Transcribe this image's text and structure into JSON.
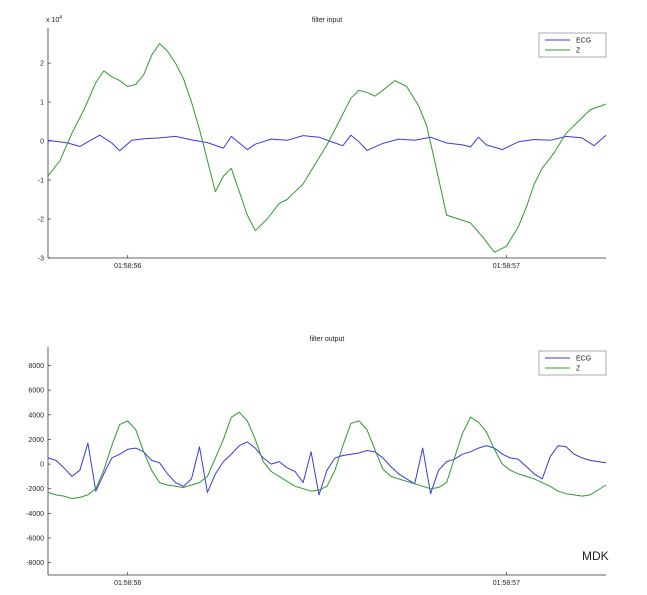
{
  "signature": "MDK",
  "colors": {
    "ecg": "#3a3adc",
    "z": "#2f9a2f"
  },
  "chart_data": [
    {
      "type": "line",
      "title": "filter input",
      "xlabel": "",
      "ylabel": "",
      "y_exponent_label": "x 10",
      "y_exponent_power": "4",
      "xlim": [
        0,
        1.4
      ],
      "ylim": [
        -3,
        2.9
      ],
      "x_ticks": [
        0.2,
        1.15
      ],
      "x_tick_labels": [
        "01:58:56",
        "01:58:57"
      ],
      "y_ticks": [
        -3,
        -2,
        -1,
        0,
        1,
        2
      ],
      "y_tick_labels": [
        "-3",
        "-2",
        "-1",
        "0",
        "1",
        "2"
      ],
      "legend": "top-right",
      "grid": false,
      "series": [
        {
          "name": "ECG",
          "color": "#3a3adc",
          "x": [
            0,
            0.05,
            0.08,
            0.1,
            0.13,
            0.16,
            0.18,
            0.21,
            0.24,
            0.28,
            0.32,
            0.36,
            0.4,
            0.44,
            0.46,
            0.48,
            0.5,
            0.52,
            0.56,
            0.6,
            0.64,
            0.68,
            0.72,
            0.74,
            0.76,
            0.78,
            0.8,
            0.84,
            0.88,
            0.92,
            0.96,
            1.0,
            1.04,
            1.06,
            1.08,
            1.1,
            1.14,
            1.18,
            1.22,
            1.26,
            1.3,
            1.34,
            1.37,
            1.4
          ],
          "y": [
            0.02,
            -0.05,
            -0.14,
            -0.02,
            0.15,
            -0.05,
            -0.25,
            0.02,
            0.06,
            0.08,
            0.12,
            0.03,
            -0.04,
            -0.18,
            0.12,
            -0.05,
            -0.22,
            -0.08,
            0.05,
            0.02,
            0.14,
            0.1,
            -0.05,
            -0.12,
            0.15,
            -0.02,
            -0.24,
            -0.06,
            0.05,
            0.02,
            0.1,
            -0.05,
            -0.1,
            -0.15,
            0.1,
            -0.1,
            -0.22,
            -0.02,
            0.04,
            0.02,
            0.12,
            0.08,
            -0.12,
            0.15
          ]
        },
        {
          "name": "Z",
          "color": "#2f9a2f",
          "x": [
            0,
            0.03,
            0.06,
            0.09,
            0.12,
            0.14,
            0.16,
            0.18,
            0.2,
            0.22,
            0.24,
            0.26,
            0.28,
            0.3,
            0.32,
            0.34,
            0.36,
            0.38,
            0.4,
            0.42,
            0.44,
            0.46,
            0.48,
            0.5,
            0.52,
            0.55,
            0.58,
            0.6,
            0.62,
            0.64,
            0.67,
            0.7,
            0.73,
            0.76,
            0.78,
            0.8,
            0.82,
            0.84,
            0.87,
            0.9,
            0.93,
            0.95,
            0.97,
            1.0,
            1.03,
            1.06,
            1.09,
            1.12,
            1.15,
            1.18,
            1.2,
            1.22,
            1.24,
            1.27,
            1.3,
            1.33,
            1.36,
            1.4
          ],
          "y": [
            -0.9,
            -0.5,
            0.2,
            0.8,
            1.5,
            1.8,
            1.65,
            1.55,
            1.4,
            1.45,
            1.7,
            2.2,
            2.5,
            2.3,
            2.0,
            1.6,
            1.0,
            0.3,
            -0.5,
            -1.3,
            -0.9,
            -0.7,
            -1.3,
            -1.9,
            -2.3,
            -2.0,
            -1.6,
            -1.5,
            -1.3,
            -1.1,
            -0.6,
            -0.1,
            0.5,
            1.1,
            1.3,
            1.25,
            1.15,
            1.3,
            1.55,
            1.4,
            0.9,
            0.4,
            -0.5,
            -1.9,
            -2.0,
            -2.1,
            -2.45,
            -2.85,
            -2.7,
            -2.2,
            -1.7,
            -1.1,
            -0.7,
            -0.3,
            0.2,
            0.5,
            0.8,
            0.95
          ]
        }
      ]
    },
    {
      "type": "line",
      "title": "filter output",
      "xlabel": "",
      "ylabel": "",
      "xlim": [
        0,
        1.4
      ],
      "ylim": [
        -9000,
        9500
      ],
      "x_ticks": [
        0.2,
        1.15
      ],
      "x_tick_labels": [
        "01:58:56",
        "01:58:57"
      ],
      "y_ticks": [
        8000,
        6000,
        4000,
        2000,
        0,
        -2000,
        -4000,
        -6000,
        -8000
      ],
      "y_tick_labels": [
        "8000",
        "6000",
        "4000",
        "2000",
        "0",
        "-2000",
        "-4000",
        "-6000",
        "-8000"
      ],
      "legend": "top-right",
      "grid": false,
      "series": [
        {
          "name": "ECG",
          "color": "#3a3adc",
          "x": [
            0,
            0.02,
            0.04,
            0.06,
            0.08,
            0.1,
            0.12,
            0.14,
            0.16,
            0.18,
            0.2,
            0.22,
            0.24,
            0.26,
            0.28,
            0.3,
            0.32,
            0.34,
            0.36,
            0.38,
            0.4,
            0.42,
            0.44,
            0.46,
            0.48,
            0.5,
            0.52,
            0.54,
            0.56,
            0.58,
            0.6,
            0.62,
            0.64,
            0.66,
            0.68,
            0.7,
            0.72,
            0.74,
            0.76,
            0.78,
            0.8,
            0.82,
            0.84,
            0.86,
            0.88,
            0.9,
            0.92,
            0.94,
            0.96,
            0.98,
            1.0,
            1.02,
            1.04,
            1.06,
            1.08,
            1.1,
            1.12,
            1.14,
            1.16,
            1.18,
            1.2,
            1.22,
            1.24,
            1.26,
            1.28,
            1.3,
            1.32,
            1.34,
            1.36,
            1.38,
            1.4
          ],
          "y": [
            500,
            300,
            -300,
            -1000,
            -500,
            1700,
            -2200,
            -800,
            500,
            800,
            1200,
            1300,
            1000,
            300,
            100,
            -800,
            -1500,
            -1800,
            -1200,
            1400,
            -2300,
            -800,
            200,
            800,
            1500,
            1800,
            1300,
            500,
            0,
            200,
            -300,
            -600,
            -1500,
            1000,
            -2500,
            -500,
            500,
            700,
            800,
            900,
            1100,
            1000,
            500,
            -200,
            -800,
            -1200,
            -1600,
            1300,
            -2400,
            -500,
            200,
            400,
            800,
            1000,
            1300,
            1500,
            1300,
            800,
            500,
            400,
            -200,
            -800,
            -1200,
            600,
            1500,
            1400,
            800,
            500,
            300,
            200,
            100
          ]
        },
        {
          "name": "Z",
          "color": "#2f9a2f",
          "x": [
            0,
            0.02,
            0.04,
            0.06,
            0.08,
            0.1,
            0.12,
            0.14,
            0.16,
            0.18,
            0.2,
            0.22,
            0.24,
            0.26,
            0.28,
            0.3,
            0.32,
            0.34,
            0.36,
            0.38,
            0.4,
            0.42,
            0.44,
            0.46,
            0.48,
            0.5,
            0.52,
            0.54,
            0.56,
            0.58,
            0.6,
            0.62,
            0.64,
            0.66,
            0.68,
            0.7,
            0.72,
            0.74,
            0.76,
            0.78,
            0.8,
            0.82,
            0.84,
            0.86,
            0.88,
            0.9,
            0.92,
            0.94,
            0.96,
            0.98,
            1.0,
            1.02,
            1.04,
            1.06,
            1.08,
            1.1,
            1.12,
            1.14,
            1.16,
            1.18,
            1.2,
            1.22,
            1.24,
            1.26,
            1.28,
            1.3,
            1.32,
            1.34,
            1.36,
            1.38,
            1.4
          ],
          "y": [
            -2300,
            -2500,
            -2600,
            -2800,
            -2700,
            -2500,
            -2000,
            -500,
            1500,
            3200,
            3500,
            2800,
            1000,
            -500,
            -1500,
            -1700,
            -1800,
            -1900,
            -1700,
            -1500,
            -1000,
            500,
            2000,
            3800,
            4200,
            3500,
            2000,
            200,
            -600,
            -1000,
            -1400,
            -1800,
            -2000,
            -2200,
            -2100,
            -1800,
            -500,
            1500,
            3300,
            3500,
            2800,
            1200,
            -400,
            -1000,
            -1200,
            -1400,
            -1600,
            -1800,
            -2000,
            -1900,
            -1500,
            500,
            2500,
            3800,
            3400,
            2600,
            1200,
            0,
            -500,
            -800,
            -1000,
            -1200,
            -1500,
            -1800,
            -2200,
            -2400,
            -2500,
            -2600,
            -2500,
            -2100,
            -1700
          ]
        }
      ]
    }
  ]
}
